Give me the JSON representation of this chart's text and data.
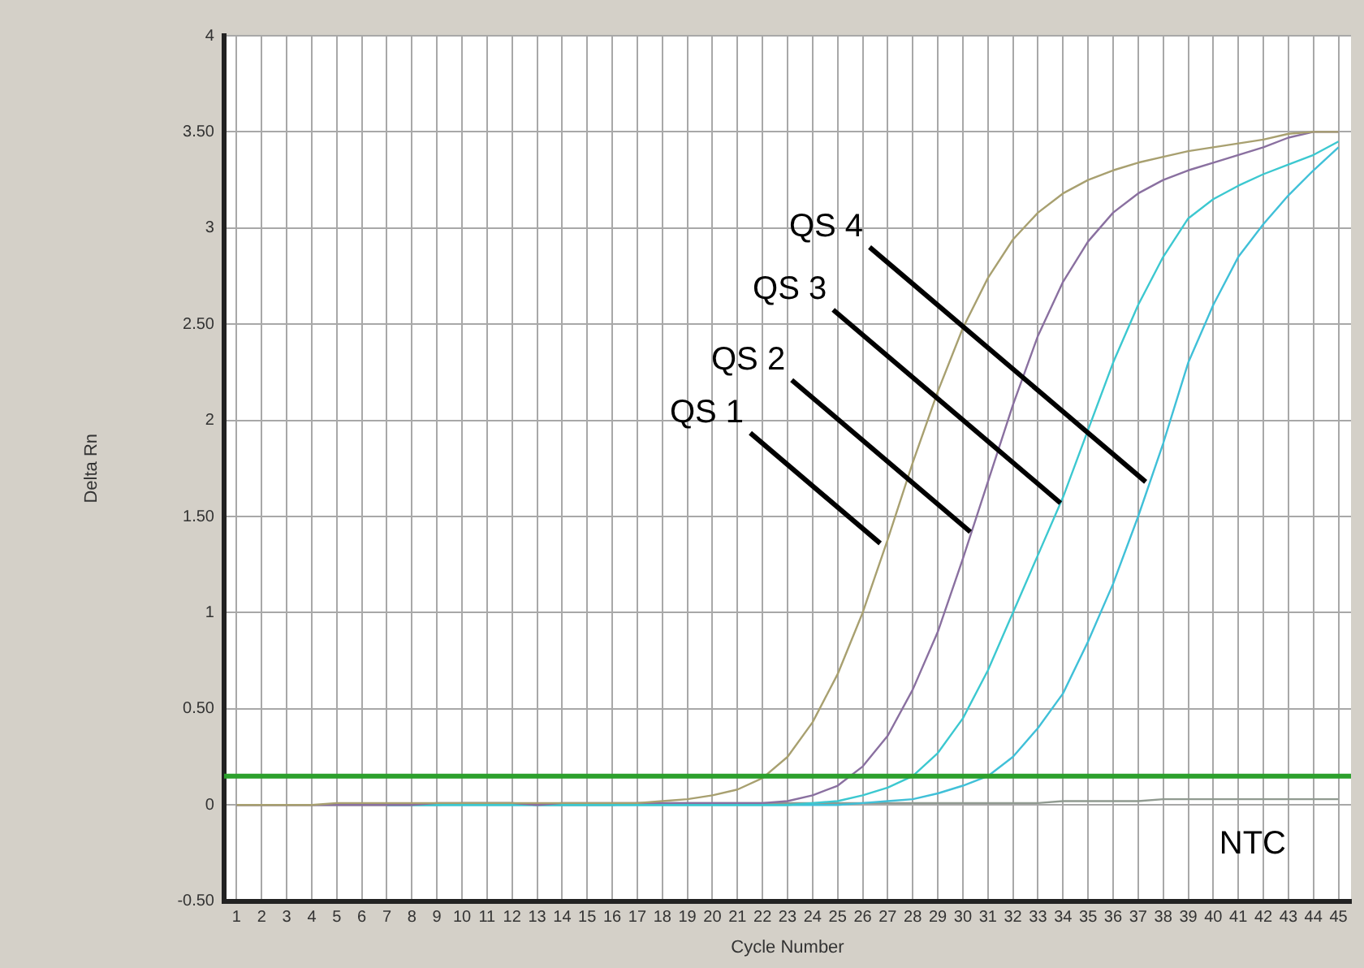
{
  "chart_data": {
    "type": "line",
    "xlabel": "Cycle Number",
    "ylabel": "Delta Rn",
    "x": [
      1,
      2,
      3,
      4,
      5,
      6,
      7,
      8,
      9,
      10,
      11,
      12,
      13,
      14,
      15,
      16,
      17,
      18,
      19,
      20,
      21,
      22,
      23,
      24,
      25,
      26,
      27,
      28,
      29,
      30,
      31,
      32,
      33,
      34,
      35,
      36,
      37,
      38,
      39,
      40,
      41,
      42,
      43,
      44,
      45
    ],
    "series": [
      {
        "color": "#a8a070",
        "values": [
          0,
          0,
          0,
          0,
          0.01,
          0.01,
          0.01,
          0.01,
          0.01,
          0.01,
          0.01,
          0.01,
          0.01,
          0.01,
          0.01,
          0.01,
          0.01,
          0.02,
          0.03,
          0.05,
          0.08,
          0.14,
          0.25,
          0.43,
          0.68,
          1.0,
          1.38,
          1.78,
          2.15,
          2.48,
          2.74,
          2.94,
          3.08,
          3.18,
          3.25,
          3.3,
          3.34,
          3.37,
          3.4,
          3.42,
          3.44,
          3.46,
          3.49,
          3.5,
          3.5
        ]
      },
      {
        "color": "#8a70a0",
        "values": [
          0,
          0,
          0,
          0,
          0,
          0,
          0,
          0,
          0.01,
          0.01,
          0.01,
          0.01,
          0,
          0.01,
          0.01,
          0.01,
          0.01,
          0.01,
          0.01,
          0.01,
          0.01,
          0.01,
          0.02,
          0.05,
          0.1,
          0.2,
          0.36,
          0.6,
          0.9,
          1.28,
          1.68,
          2.08,
          2.44,
          2.72,
          2.93,
          3.08,
          3.18,
          3.25,
          3.3,
          3.34,
          3.38,
          3.42,
          3.47,
          3.5,
          3.5
        ]
      },
      {
        "color": "#3cc8d0",
        "values": [
          null,
          null,
          null,
          null,
          null,
          null,
          0,
          0,
          0,
          0,
          0,
          0,
          0,
          0,
          0,
          0,
          0,
          0,
          0,
          0,
          0,
          0,
          0,
          0.01,
          0.02,
          0.05,
          0.09,
          0.15,
          0.27,
          0.45,
          0.7,
          1.0,
          1.3,
          1.6,
          1.95,
          2.3,
          2.6,
          2.85,
          3.05,
          3.15,
          3.22,
          3.28,
          3.33,
          3.38,
          3.45
        ]
      },
      {
        "color": "#40c0d8",
        "values": [
          null,
          null,
          null,
          null,
          null,
          null,
          0,
          0,
          0,
          0,
          0,
          0,
          0,
          0,
          0,
          0,
          0,
          0,
          0,
          0,
          0,
          0,
          0,
          0,
          0,
          0.01,
          0.02,
          0.03,
          0.06,
          0.1,
          0.15,
          0.25,
          0.4,
          0.58,
          0.85,
          1.15,
          1.5,
          1.88,
          2.3,
          2.6,
          2.85,
          3.02,
          3.17,
          3.3,
          3.42
        ]
      },
      {
        "color": "#909a90",
        "values": [
          0,
          0,
          0,
          0,
          0,
          0,
          0,
          0,
          0,
          0.01,
          0.01,
          0.01,
          0,
          0,
          0,
          0,
          0.01,
          0.01,
          0.01,
          0.01,
          0.01,
          0.01,
          0.01,
          0.01,
          0.01,
          0.01,
          0.01,
          0.01,
          0.01,
          0.01,
          0.01,
          0.01,
          0.01,
          0.02,
          0.02,
          0.02,
          0.02,
          0.03,
          0.03,
          0.03,
          0.03,
          0.03,
          0.03,
          0.03,
          0.03
        ]
      }
    ],
    "xlim": [
      0.5,
      45.5
    ],
    "xticks": [
      1,
      2,
      3,
      4,
      5,
      6,
      7,
      8,
      9,
      10,
      11,
      12,
      13,
      14,
      15,
      16,
      17,
      18,
      19,
      20,
      21,
      22,
      23,
      24,
      25,
      26,
      27,
      28,
      29,
      30,
      31,
      32,
      33,
      34,
      35,
      36,
      37,
      38,
      39,
      40,
      41,
      42,
      43,
      44,
      45
    ],
    "ylim": [
      -0.5,
      4
    ],
    "yticks": [
      {
        "value": -0.5,
        "label": "-0.50"
      },
      0,
      {
        "value": 0.5,
        "label": "0.50"
      },
      1,
      {
        "value": 1.5,
        "label": "1.50"
      },
      2,
      {
        "value": 2.5,
        "label": "2.50"
      },
      3,
      {
        "value": 3.5,
        "label": "3.50"
      },
      4
    ],
    "grid": true,
    "marker": "none",
    "line_style": "solid",
    "legend": false,
    "ref_lines": [
      {
        "axis": "y",
        "value": 0.15,
        "color": "#2ca02c"
      }
    ],
    "annotations": [
      {
        "text": "QS 1",
        "x": 26.7,
        "y": 1.36
      },
      {
        "text": "QS 2",
        "x": 30.3,
        "y": 1.42
      },
      {
        "text": "QS 3",
        "x": 33.9,
        "y": 1.57
      },
      {
        "text": "QS 4",
        "x": 37.3,
        "y": 1.68
      },
      "NTC"
    ]
  }
}
